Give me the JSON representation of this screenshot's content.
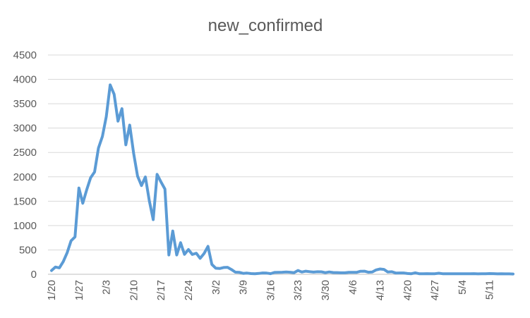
{
  "chart_data": {
    "type": "line",
    "title": "new_confirmed",
    "xlabel": "",
    "ylabel": "",
    "ylim": [
      0,
      4500
    ],
    "yticks": [
      0,
      500,
      1000,
      1500,
      2000,
      2500,
      3000,
      3500,
      4000,
      4500
    ],
    "x_tick_labels": [
      "1/20",
      "1/27",
      "2/3",
      "2/10",
      "2/17",
      "2/24",
      "3/2",
      "3/9",
      "3/16",
      "3/23",
      "3/30",
      "4/6",
      "4/13",
      "4/20",
      "4/27",
      "5/4",
      "5/11"
    ],
    "grid": true,
    "legend": "none",
    "series": [
      {
        "color": "#5b9bd5",
        "x": [
          "1/20",
          "1/21",
          "1/22",
          "1/23",
          "1/24",
          "1/25",
          "1/26",
          "1/27",
          "1/28",
          "1/29",
          "1/30",
          "1/31",
          "2/1",
          "2/2",
          "2/3",
          "2/4",
          "2/5",
          "2/6",
          "2/7",
          "2/8",
          "2/9",
          "2/10",
          "2/11",
          "2/12",
          "2/13",
          "2/14",
          "2/15",
          "2/16",
          "2/17",
          "2/18",
          "2/19",
          "2/20",
          "2/21",
          "2/22",
          "2/23",
          "2/24",
          "2/25",
          "2/26",
          "2/27",
          "2/28",
          "2/29",
          "3/1",
          "3/2",
          "3/3",
          "3/4",
          "3/5",
          "3/6",
          "3/7",
          "3/8",
          "3/9",
          "3/10",
          "3/11",
          "3/12",
          "3/13",
          "3/14",
          "3/15",
          "3/16",
          "3/17",
          "3/18",
          "3/19",
          "3/20",
          "3/21",
          "3/22",
          "3/23",
          "3/24",
          "3/25",
          "3/26",
          "3/27",
          "3/28",
          "3/29",
          "3/30",
          "3/31",
          "4/1",
          "4/2",
          "4/3",
          "4/4",
          "4/5",
          "4/6",
          "4/7",
          "4/8",
          "4/9",
          "4/10",
          "4/11",
          "4/12",
          "4/13",
          "4/14",
          "4/15",
          "4/16",
          "4/17",
          "4/18",
          "4/19",
          "4/20",
          "4/21",
          "4/22",
          "4/23",
          "4/24",
          "4/25",
          "4/26",
          "4/27",
          "4/28",
          "4/29",
          "4/30",
          "5/1",
          "5/2",
          "5/3",
          "5/4",
          "5/5",
          "5/6",
          "5/7",
          "5/8",
          "5/9",
          "5/10",
          "5/11",
          "5/12",
          "5/13",
          "5/14",
          "5/15",
          "5/16",
          "5/17"
        ],
        "values": [
          77,
          149,
          131,
          259,
          444,
          688,
          769,
          1771,
          1459,
          1737,
          1981,
          2099,
          2590,
          2829,
          3235,
          3887,
          3694,
          3143,
          3399,
          2656,
          3062,
          2478,
          2015,
          1820,
          1998,
          1506,
          1121,
          2051,
          1893,
          1750,
          397,
          889,
          397,
          648,
          409,
          508,
          406,
          433,
          327,
          427,
          573,
          202,
          125,
          119,
          139,
          143,
          99,
          44,
          40,
          19,
          24,
          15,
          11,
          18,
          27,
          24,
          13,
          38,
          40,
          42,
          46,
          42,
          34,
          78,
          47,
          63,
          54,
          45,
          52,
          51,
          34,
          48,
          36,
          35,
          31,
          30,
          39,
          39,
          39,
          62,
          63,
          42,
          46,
          89,
          108,
          100,
          46,
          52,
          26,
          27,
          27,
          16,
          12,
          30,
          12,
          11,
          13,
          12,
          11,
          21,
          11,
          11,
          12,
          10,
          11,
          11,
          12,
          11,
          13,
          9,
          12,
          11,
          14,
          13,
          8,
          11,
          9,
          8,
          6
        ]
      }
    ]
  }
}
